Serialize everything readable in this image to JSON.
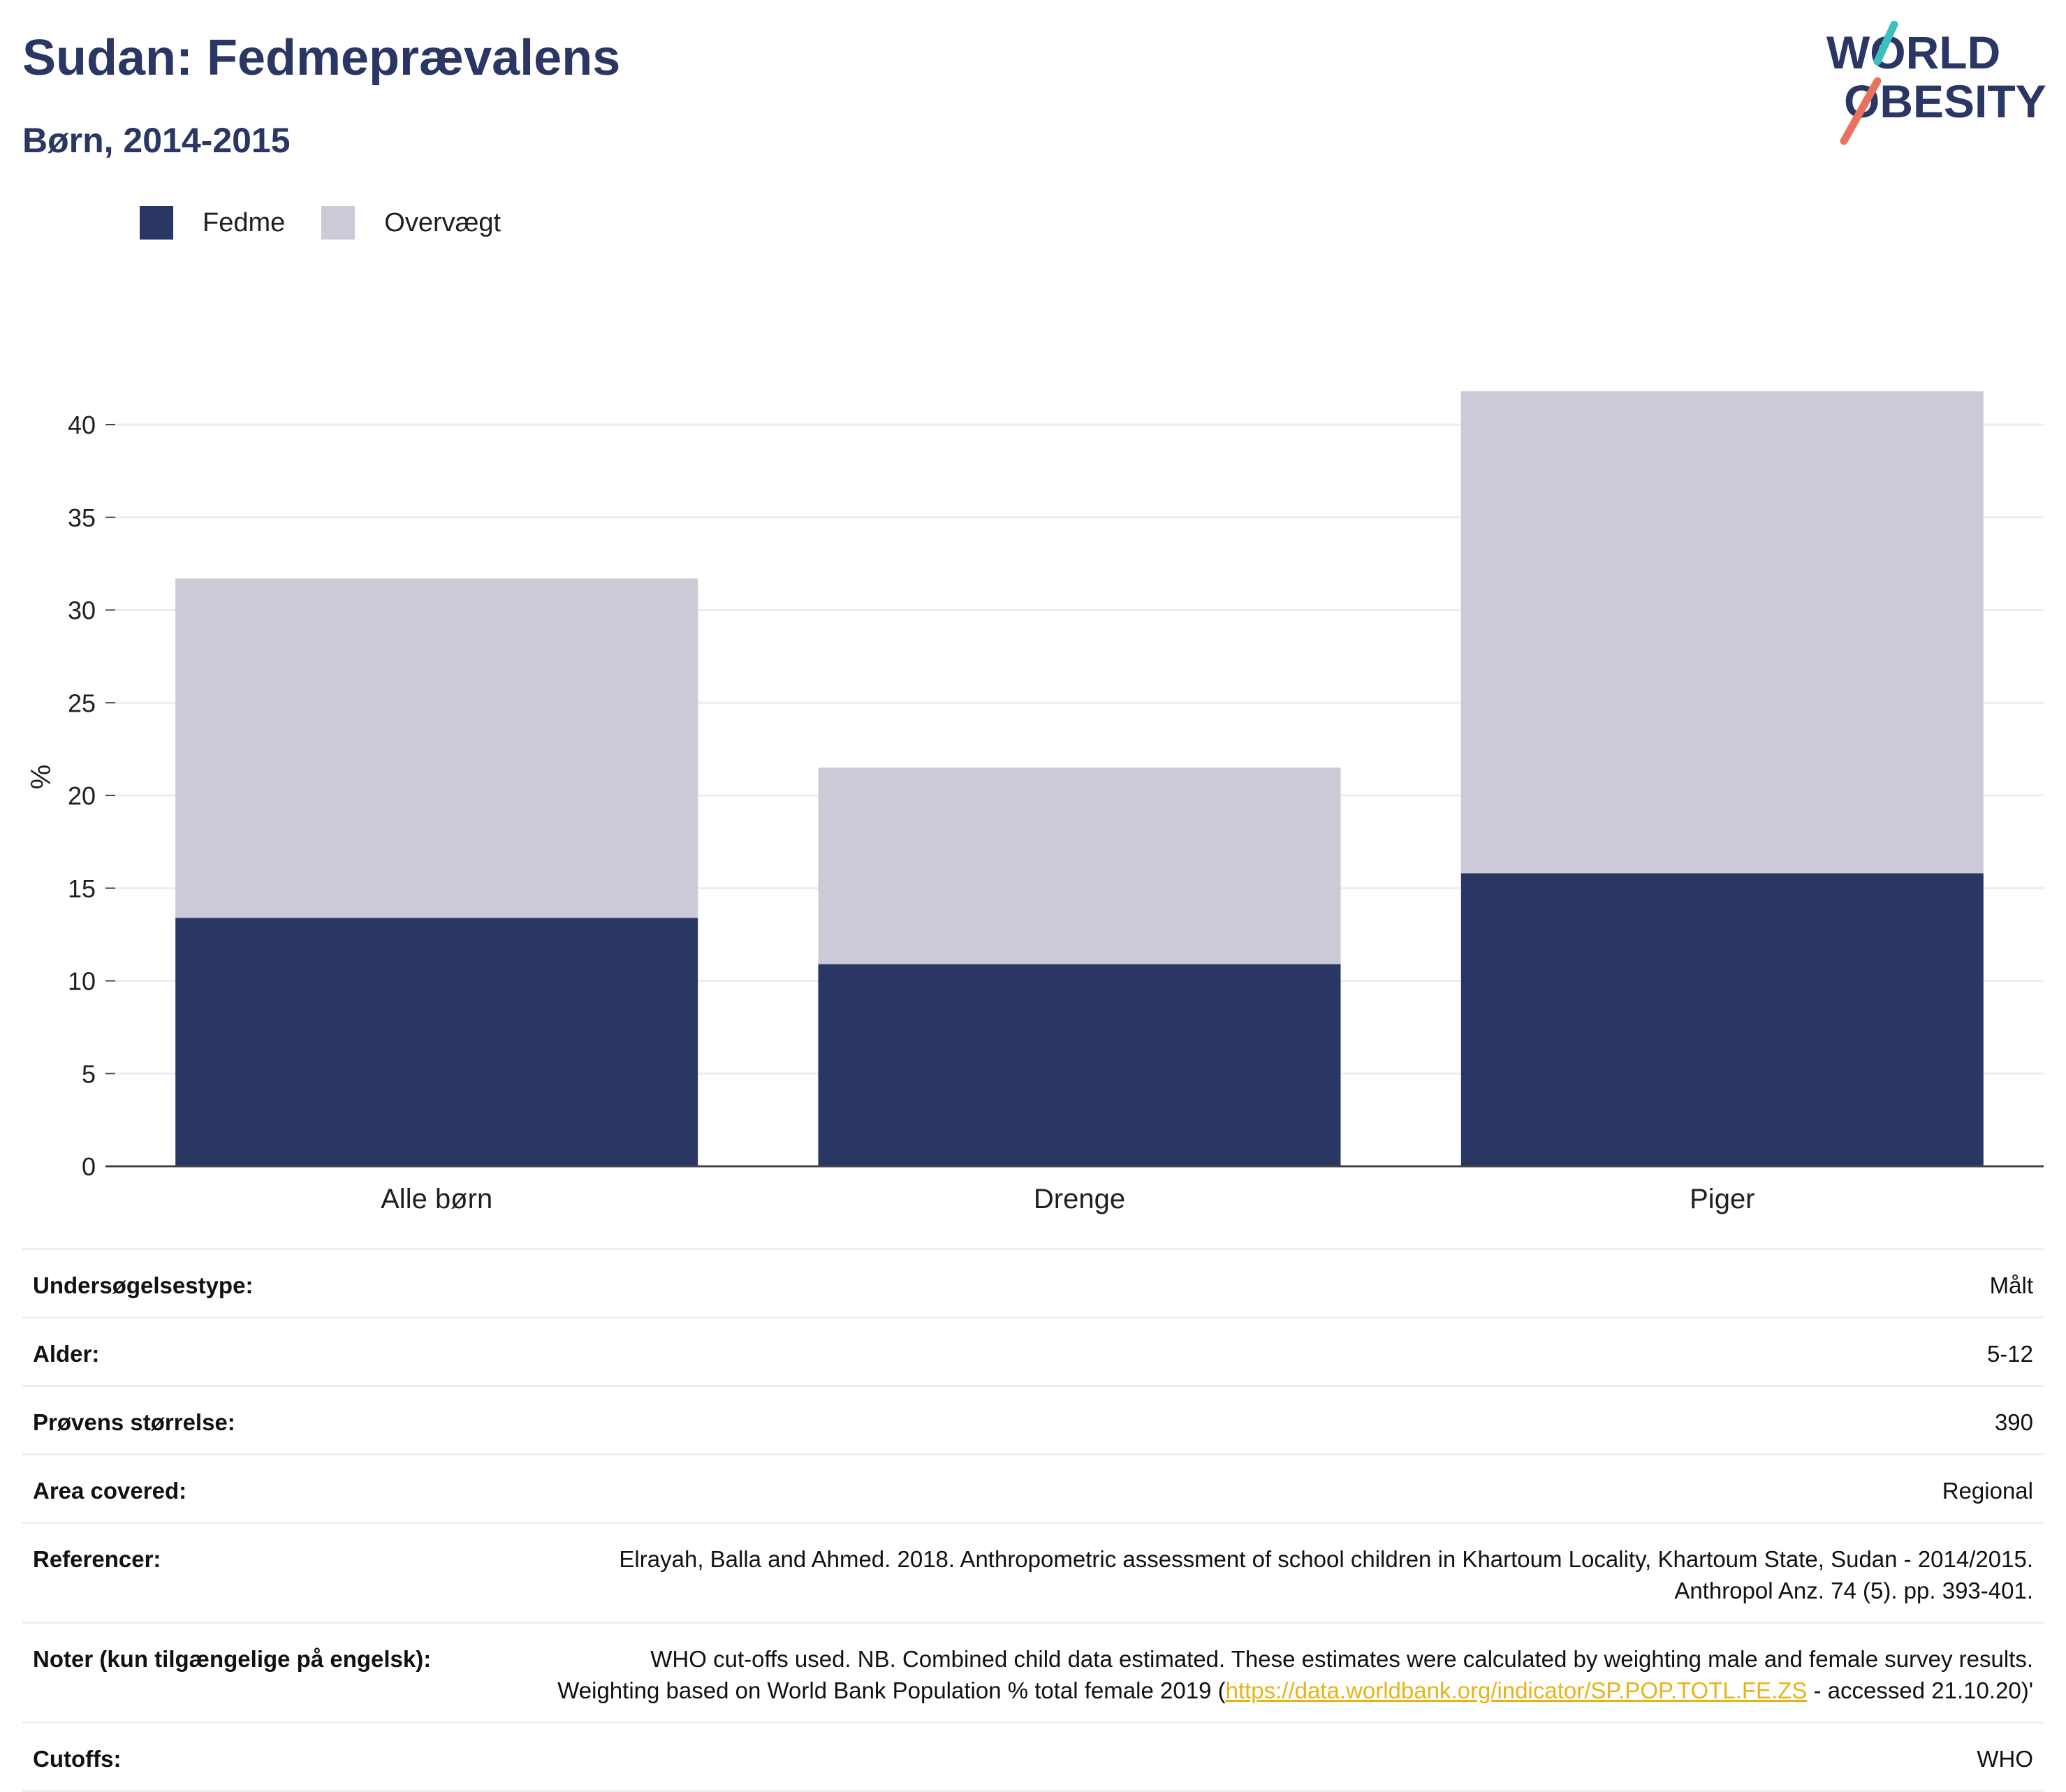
{
  "header": {
    "title": "Sudan: Fedmeprævalens",
    "subtitle": "Børn, 2014-2015"
  },
  "logo": {
    "line1": "WORLD",
    "line2": "OBESITY"
  },
  "colors": {
    "obesity": "#2a3663",
    "overweight": "#cacbd6",
    "title": "#2a3663",
    "link": "#e7b416",
    "logo_teal": "#3cbfbf",
    "logo_coral": "#e8735c"
  },
  "chart_data": {
    "type": "bar",
    "stacked": true,
    "categories": [
      "Alle børn",
      "Drenge",
      "Piger"
    ],
    "series": [
      {
        "name": "Fedme",
        "values": [
          13.4,
          10.9,
          15.8
        ]
      },
      {
        "name": "Overvægt",
        "values": [
          18.3,
          10.6,
          26.0
        ]
      }
    ],
    "ylabel": "%",
    "ylim": [
      0,
      42
    ],
    "yticks": [
      0,
      5,
      10,
      15,
      20,
      25,
      30,
      35,
      40
    ],
    "grid": true,
    "legend_position": "top-left"
  },
  "meta": {
    "rows": [
      {
        "label": "Undersøgelsestype:",
        "value": "Målt"
      },
      {
        "label": "Alder:",
        "value": "5-12"
      },
      {
        "label": "Prøvens størrelse:",
        "value": "390"
      },
      {
        "label": "Area covered:",
        "value": "Regional"
      },
      {
        "label": "Referencer:",
        "value": "Elrayah, Balla and Ahmed. 2018. Anthropometric assessment of school children in Khartoum Locality, Khartoum State, Sudan - 2014/2015. Anthropol Anz. 74 (5). pp. 393-401."
      },
      {
        "label": "Noter (kun tilgængelige på engelsk):",
        "value_before": "WHO cut-offs used. NB. Combined child data estimated. These estimates were calculated by weighting male and female survey results. Weighting based on World Bank Population % total female 2019 (",
        "link": "https://data.worldbank.org/indicator/SP.POP.TOTL.FE.ZS",
        "value_after": " - accessed 21.10.20)'"
      },
      {
        "label": "Cutoffs:",
        "value": "WHO"
      }
    ]
  }
}
